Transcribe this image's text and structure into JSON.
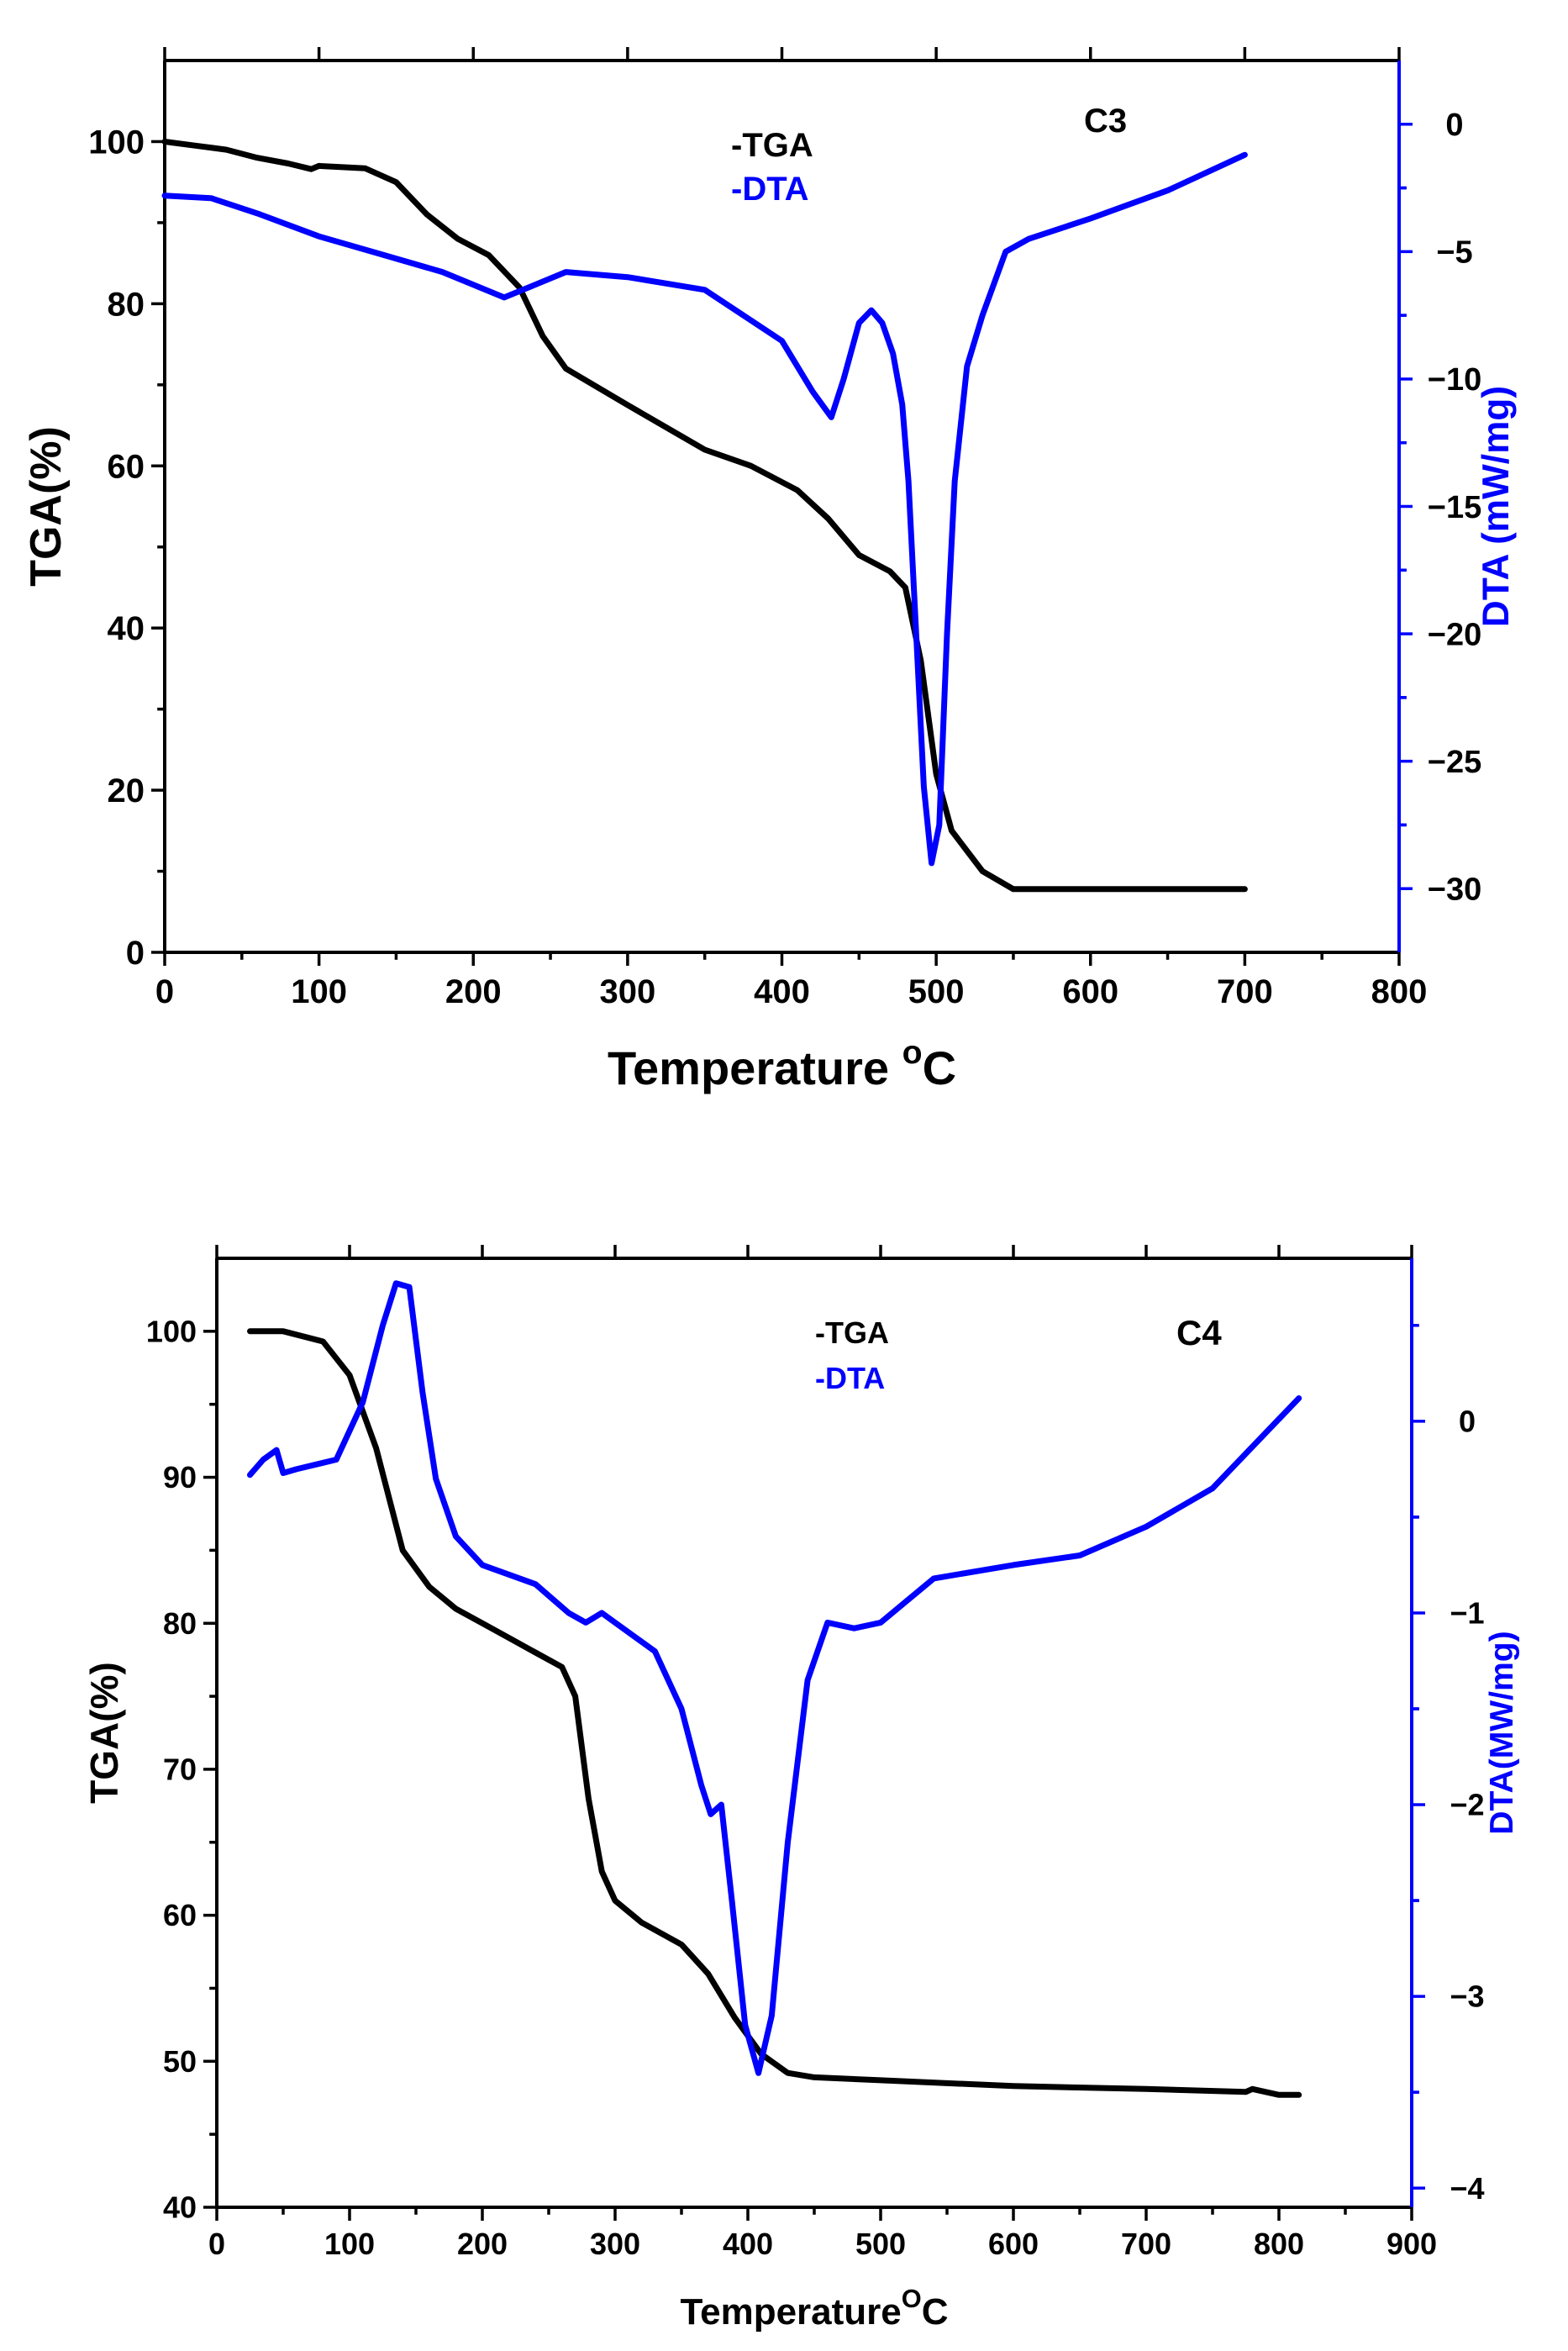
{
  "chart_data": [
    {
      "type": "line",
      "title": "C3",
      "xlabel": "Temperature",
      "xlabel_unit": "C",
      "xlabel_degree": "o",
      "ylabel_left": "TGA(%)",
      "ylabel_right": "DTA (mW/mg)",
      "xlim": [
        0,
        800
      ],
      "ylim_left": [
        0,
        110
      ],
      "ylim_right": [
        -32.5,
        2.5
      ],
      "xticks": [
        0,
        100,
        200,
        300,
        400,
        500,
        600,
        700,
        800
      ],
      "yticks_left": [
        0,
        20,
        40,
        60,
        80,
        100
      ],
      "yticks_right": [
        0,
        -5,
        -10,
        -15,
        -20,
        -25,
        -30
      ],
      "legend": [
        "-TGA",
        "-DTA"
      ],
      "colors": {
        "TGA": "#000000",
        "DTA": "#0000ff"
      },
      "series": [
        {
          "name": "TGA",
          "axis": "left",
          "x": [
            0,
            20,
            40,
            60,
            80,
            95,
            100,
            130,
            150,
            170,
            190,
            210,
            230,
            245,
            260,
            300,
            350,
            380,
            410,
            430,
            450,
            470,
            480,
            490,
            500,
            510,
            530,
            550,
            600,
            650,
            700
          ],
          "y": [
            100,
            99.5,
            99,
            98,
            97.3,
            96.6,
            97,
            96.7,
            95,
            91,
            88,
            86,
            82,
            76,
            72,
            67.5,
            62,
            60,
            57,
            53.5,
            49,
            47,
            45,
            36,
            22,
            15,
            10,
            7.8,
            7.8,
            7.8,
            7.8
          ]
        },
        {
          "name": "DTA",
          "axis": "right",
          "x": [
            0,
            30,
            60,
            100,
            140,
            180,
            220,
            240,
            260,
            300,
            350,
            400,
            420,
            432,
            440,
            450,
            458,
            465,
            472,
            478,
            482,
            487,
            492,
            497,
            502,
            507,
            512,
            520,
            530,
            545,
            560,
            600,
            650,
            700
          ],
          "y": [
            -2.8,
            -2.9,
            -3.5,
            -4.4,
            -5.1,
            -5.8,
            -6.8,
            -6.3,
            -5.8,
            -6.0,
            -6.5,
            -8.5,
            -10.5,
            -11.5,
            -10.0,
            -7.8,
            -7.3,
            -7.8,
            -9.0,
            -11.0,
            -14.0,
            -20.0,
            -26.0,
            -29.0,
            -27.5,
            -20.0,
            -14.0,
            -9.5,
            -7.5,
            -5.0,
            -4.5,
            -3.7,
            -2.6,
            -1.2
          ]
        }
      ]
    },
    {
      "type": "line",
      "title": "C4",
      "xlabel": "Temperature",
      "xlabel_unit": "C",
      "xlabel_degree": "O",
      "ylabel_left": "TGA(%)",
      "ylabel_right": "DTA(MW/mg)",
      "xlim": [
        0,
        900
      ],
      "ylim_left": [
        40,
        105
      ],
      "ylim_right": [
        -4.1,
        0.85
      ],
      "xticks": [
        0,
        100,
        200,
        300,
        400,
        500,
        600,
        700,
        800,
        900
      ],
      "yticks_left": [
        40,
        50,
        60,
        70,
        80,
        90,
        100
      ],
      "yticks_right": [
        0,
        -1,
        -2,
        -3,
        -4
      ],
      "legend": [
        "-TGA",
        "-DTA"
      ],
      "colors": {
        "TGA": "#000000",
        "DTA": "#0000ff"
      },
      "series": [
        {
          "name": "TGA",
          "axis": "left",
          "x": [
            25,
            50,
            80,
            100,
            120,
            140,
            160,
            180,
            200,
            220,
            240,
            260,
            270,
            280,
            290,
            300,
            320,
            350,
            370,
            390,
            410,
            430,
            450,
            500,
            600,
            700,
            775,
            780,
            800,
            815
          ],
          "y": [
            100,
            100,
            99.3,
            97,
            92,
            85,
            82.5,
            81,
            80,
            79,
            78,
            77,
            75,
            68,
            63,
            61,
            59.5,
            58,
            56,
            53,
            50.5,
            49.2,
            48.9,
            48.7,
            48.3,
            48.1,
            47.9,
            48.1,
            47.7,
            47.7
          ]
        },
        {
          "name": "DTA",
          "axis": "right",
          "x": [
            25,
            35,
            45,
            50,
            60,
            90,
            110,
            125,
            135,
            145,
            155,
            165,
            180,
            200,
            240,
            265,
            278,
            290,
            300,
            330,
            350,
            365,
            372,
            380,
            388,
            398,
            408,
            418,
            430,
            445,
            460,
            480,
            500,
            540,
            600,
            650,
            700,
            750,
            815
          ],
          "y": [
            -0.28,
            -0.2,
            -0.15,
            -0.27,
            -0.25,
            -0.2,
            0.1,
            0.5,
            0.72,
            0.7,
            0.15,
            -0.3,
            -0.6,
            -0.75,
            -0.85,
            -1.0,
            -1.05,
            -1.0,
            -1.05,
            -1.2,
            -1.5,
            -1.9,
            -2.05,
            -2.0,
            -2.5,
            -3.15,
            -3.4,
            -3.1,
            -2.2,
            -1.35,
            -1.05,
            -1.08,
            -1.05,
            -0.82,
            -0.75,
            -0.7,
            -0.55,
            -0.35,
            0.12
          ]
        }
      ]
    }
  ]
}
